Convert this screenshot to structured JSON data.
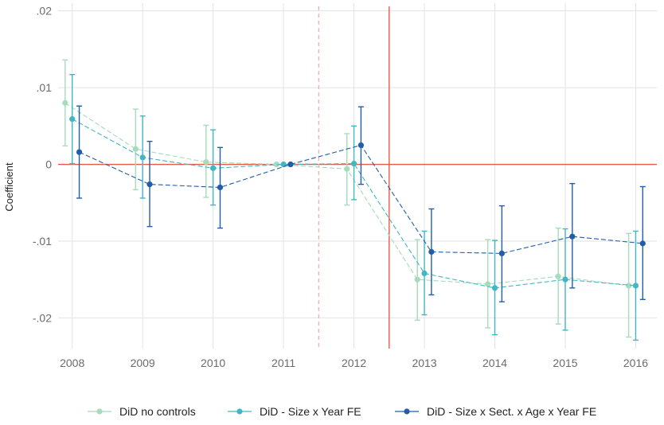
{
  "chart_data": {
    "type": "line",
    "title": "",
    "xlabel": "",
    "ylabel": "Coefficient",
    "x": [
      2008,
      2009,
      2010,
      2011,
      2012,
      2013,
      2014,
      2015,
      2016
    ],
    "x_tick_labels": [
      "2008",
      "2009",
      "2010",
      "2011",
      "2012",
      "2013",
      "2014",
      "2015",
      "2016"
    ],
    "ylim": [
      -0.024,
      0.021
    ],
    "y_ticks": [
      0.02,
      0.01,
      0,
      -0.01,
      -0.02
    ],
    "y_tick_labels": [
      ".02",
      ".01",
      "0",
      "-.01",
      "-.02"
    ],
    "grid": true,
    "legend_position": "bottom",
    "reference_lines": {
      "horizontal_zero": {
        "y": 0,
        "color": "#e8594a"
      },
      "solid_vertical": {
        "x": 2012.5,
        "color": "#e8594a"
      },
      "dashed_vertical": {
        "x": 2011.5,
        "color": "#f2b39f"
      }
    },
    "series": [
      {
        "name": "DiD no controls",
        "color": "#a6dbbc",
        "offset": -0.1,
        "values": [
          0.008,
          0.002,
          0.0003,
          0.0,
          -0.0006,
          -0.015,
          -0.0156,
          -0.0146,
          -0.0158
        ],
        "ci_low": [
          0.0024,
          -0.0033,
          -0.0043,
          0.0,
          -0.0053,
          -0.0203,
          -0.0213,
          -0.0208,
          -0.0225
        ],
        "ci_high": [
          0.0136,
          0.0072,
          0.0051,
          0.0,
          0.004,
          -0.0098,
          -0.0098,
          -0.0083,
          -0.009
        ]
      },
      {
        "name": "DiD - Size x Year FE",
        "color": "#41b6c4",
        "offset": 0.0,
        "values": [
          0.0059,
          0.0009,
          -0.0005,
          0.0,
          0.0001,
          -0.0142,
          -0.0161,
          -0.015,
          -0.0158
        ],
        "ci_low": [
          0.0001,
          -0.0044,
          -0.0053,
          0.0,
          -0.0046,
          -0.0196,
          -0.0222,
          -0.0216,
          -0.0229
        ],
        "ci_high": [
          0.0117,
          0.0063,
          0.0045,
          0.0,
          0.005,
          -0.0087,
          -0.0099,
          -0.0084,
          -0.0087
        ]
      },
      {
        "name": "DiD - Size x Sect. x Age x Year FE",
        "color": "#225ea8",
        "offset": 0.1,
        "values": [
          0.0016,
          -0.0026,
          -0.003,
          0.0,
          0.0025,
          -0.0114,
          -0.0116,
          -0.0094,
          -0.0103
        ],
        "ci_low": [
          -0.0044,
          -0.0081,
          -0.0083,
          0.0,
          -0.0026,
          -0.017,
          -0.0179,
          -0.0161,
          -0.0176
        ],
        "ci_high": [
          0.0076,
          0.003,
          0.0022,
          0.0,
          0.0075,
          -0.0058,
          -0.0054,
          -0.0025,
          -0.0029
        ]
      }
    ]
  }
}
